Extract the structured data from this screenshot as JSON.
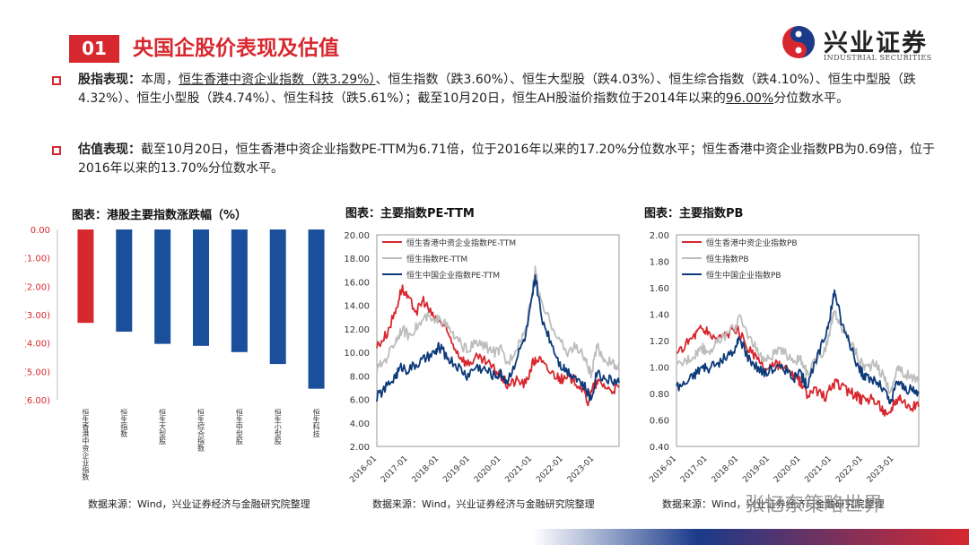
{
  "header": {
    "section_number": "01",
    "title": "央国企股价表现及估值",
    "logo_cn": "兴业证券",
    "logo_en": "INDUSTRIAL SECURITIES"
  },
  "bullets": [
    {
      "label": "股指表现：",
      "segments": [
        {
          "text": "本周，",
          "u": false
        },
        {
          "text": "恒生香港中资企业指数（跌3.29%）",
          "u": true
        },
        {
          "text": "、恒生指数（跌3.60%）、恒生大型股（跌4.03%）、恒生综合指数（跌4.10%）、恒生中型股（跌4.32%）、恒生小型股（跌4.74%）、恒生科技（跌5.61%）；截至10月20日，恒生AH股溢价指数位于2014年以来的",
          "u": false
        },
        {
          "text": "96.00%",
          "u": true
        },
        {
          "text": "分位数水平。",
          "u": false
        }
      ]
    },
    {
      "label": "估值表现：",
      "segments": [
        {
          "text": "截至10月20日，恒生香港中资企业指数PE-TTM为6.71倍，位于2016年以来的17.20%分位数水平；恒生香港中资企业指数PB为0.69倍，位于2016年以来的13.70%分位数水平。",
          "u": false
        }
      ]
    }
  ],
  "charts": {
    "bar": {
      "title": "图表：港股主要指数涨跌幅（%）",
      "source": "数据来源：Wind，兴业证券经济与金融研究院整理"
    },
    "pe": {
      "title": "图表：主要指数PE-TTM",
      "source": "数据来源：Wind，兴业证券经济与金融研究院整理"
    },
    "pb": {
      "title": "图表：主要指数PB",
      "source": "数据来源：Wind，兴业证券经济与金融研究院整理"
    }
  },
  "watermark": "张忆东策略世界",
  "colors": {
    "red": "#d7282f",
    "blue": "#1a4f9c",
    "gray": "#bdbdbd",
    "navy": "#0d3b7a"
  },
  "chart_data": [
    {
      "type": "bar",
      "title": "图表：港股主要指数涨跌幅（%）",
      "categories": [
        "恒生香港中资企业指数",
        "恒生指数",
        "恒生大型股",
        "恒生综合指数",
        "恒生中型股",
        "恒生小型股",
        "恒生科技"
      ],
      "values": [
        -3.29,
        -3.6,
        -4.03,
        -4.1,
        -4.32,
        -4.74,
        -5.61
      ],
      "colors": [
        "#d7282f",
        "#1a4f9c",
        "#1a4f9c",
        "#1a4f9c",
        "#1a4f9c",
        "#1a4f9c",
        "#1a4f9c"
      ],
      "ylim": [
        -6,
        0
      ],
      "yticks": [
        "0.00",
        "(1.00)",
        "(2.00)",
        "(3.00)",
        "(4.00)",
        "(5.00)",
        "(6.00)"
      ]
    },
    {
      "type": "line",
      "title": "图表：主要指数PE-TTM",
      "ylim": [
        2,
        20
      ],
      "yticks": [
        "2.00",
        "4.00",
        "6.00",
        "8.00",
        "10.00",
        "12.00",
        "14.00",
        "16.00",
        "18.00",
        "20.00"
      ],
      "xticks": [
        "2016-01",
        "2017-01",
        "2018-01",
        "2019-01",
        "2020-01",
        "2021-01",
        "2022-01",
        "2023-01"
      ],
      "x_range": [
        2016.0,
        2023.8
      ],
      "series": [
        {
          "name": "恒生香港中资企业指数PE-TTM",
          "color": "#d7282f",
          "points": [
            [
              2016.0,
              10.5
            ],
            [
              2016.3,
              11.5
            ],
            [
              2016.6,
              13.5
            ],
            [
              2016.8,
              15.5
            ],
            [
              2017.0,
              14.5
            ],
            [
              2017.3,
              13.5
            ],
            [
              2017.5,
              14.5
            ],
            [
              2017.8,
              13.0
            ],
            [
              2018.0,
              12.8
            ],
            [
              2018.3,
              11.5
            ],
            [
              2018.6,
              10.0
            ],
            [
              2018.9,
              9.0
            ],
            [
              2019.2,
              9.5
            ],
            [
              2019.5,
              9.2
            ],
            [
              2019.8,
              8.5
            ],
            [
              2020.0,
              8.0
            ],
            [
              2020.2,
              7.2
            ],
            [
              2020.5,
              7.6
            ],
            [
              2020.8,
              7.3
            ],
            [
              2021.0,
              9.0
            ],
            [
              2021.2,
              9.5
            ],
            [
              2021.5,
              8.5
            ],
            [
              2021.8,
              8.0
            ],
            [
              2022.0,
              7.6
            ],
            [
              2022.3,
              7.8
            ],
            [
              2022.6,
              7.0
            ],
            [
              2022.8,
              5.8
            ],
            [
              2023.0,
              7.2
            ],
            [
              2023.2,
              7.5
            ],
            [
              2023.5,
              6.8
            ],
            [
              2023.8,
              7.0
            ]
          ]
        },
        {
          "name": "恒生指数PE-TTM",
          "color": "#bdbdbd",
          "points": [
            [
              2016.0,
              8.5
            ],
            [
              2016.3,
              9.5
            ],
            [
              2016.6,
              11.0
            ],
            [
              2016.8,
              12.0
            ],
            [
              2017.0,
              11.5
            ],
            [
              2017.3,
              12.2
            ],
            [
              2017.6,
              13.0
            ],
            [
              2017.9,
              12.5
            ],
            [
              2018.0,
              13.2
            ],
            [
              2018.3,
              12.0
            ],
            [
              2018.6,
              11.0
            ],
            [
              2018.9,
              10.2
            ],
            [
              2019.2,
              10.8
            ],
            [
              2019.5,
              10.5
            ],
            [
              2019.8,
              10.0
            ],
            [
              2020.0,
              10.2
            ],
            [
              2020.2,
              9.0
            ],
            [
              2020.5,
              10.5
            ],
            [
              2020.8,
              12.0
            ],
            [
              2021.0,
              15.0
            ],
            [
              2021.1,
              17.0
            ],
            [
              2021.3,
              14.0
            ],
            [
              2021.6,
              12.5
            ],
            [
              2021.9,
              11.0
            ],
            [
              2022.1,
              10.0
            ],
            [
              2022.4,
              10.5
            ],
            [
              2022.7,
              9.5
            ],
            [
              2022.9,
              8.0
            ],
            [
              2023.1,
              10.5
            ],
            [
              2023.3,
              9.5
            ],
            [
              2023.6,
              9.0
            ],
            [
              2023.8,
              8.5
            ]
          ]
        },
        {
          "name": "恒生中国企业指数PE-TTM",
          "color": "#0d3b7a",
          "points": [
            [
              2016.0,
              6.2
            ],
            [
              2016.3,
              7.0
            ],
            [
              2016.6,
              8.0
            ],
            [
              2016.8,
              8.8
            ],
            [
              2017.0,
              8.5
            ],
            [
              2017.3,
              9.0
            ],
            [
              2017.6,
              9.5
            ],
            [
              2017.9,
              10.0
            ],
            [
              2018.0,
              10.5
            ],
            [
              2018.3,
              9.5
            ],
            [
              2018.6,
              8.8
            ],
            [
              2018.9,
              8.0
            ],
            [
              2019.2,
              8.8
            ],
            [
              2019.5,
              8.5
            ],
            [
              2019.8,
              8.0
            ],
            [
              2020.0,
              8.2
            ],
            [
              2020.2,
              7.5
            ],
            [
              2020.5,
              9.5
            ],
            [
              2020.8,
              11.5
            ],
            [
              2021.0,
              14.5
            ],
            [
              2021.1,
              16.5
            ],
            [
              2021.3,
              13.0
            ],
            [
              2021.6,
              11.0
            ],
            [
              2021.9,
              9.0
            ],
            [
              2022.1,
              8.5
            ],
            [
              2022.4,
              8.0
            ],
            [
              2022.7,
              7.0
            ],
            [
              2022.9,
              6.0
            ],
            [
              2023.1,
              8.5
            ],
            [
              2023.3,
              7.8
            ],
            [
              2023.6,
              7.6
            ],
            [
              2023.8,
              7.4
            ]
          ]
        }
      ]
    },
    {
      "type": "line",
      "title": "图表：主要指数PB",
      "ylim": [
        0.4,
        2.0
      ],
      "yticks": [
        "0.40",
        "0.60",
        "0.80",
        "1.00",
        "1.20",
        "1.40",
        "1.60",
        "1.80",
        "2.00"
      ],
      "xticks": [
        "2016-01",
        "2017-01",
        "2018-01",
        "2019-01",
        "2020-01",
        "2021-01",
        "2022-01",
        "2023-01"
      ],
      "x_range": [
        2016.0,
        2023.8
      ],
      "series": [
        {
          "name": "恒生香港中资企业指数PB",
          "color": "#d7282f",
          "points": [
            [
              2016.0,
              1.08
            ],
            [
              2016.3,
              1.18
            ],
            [
              2016.6,
              1.25
            ],
            [
              2016.8,
              1.3
            ],
            [
              2017.0,
              1.26
            ],
            [
              2017.3,
              1.22
            ],
            [
              2017.6,
              1.25
            ],
            [
              2017.9,
              1.28
            ],
            [
              2018.0,
              1.27
            ],
            [
              2018.3,
              1.15
            ],
            [
              2018.6,
              1.05
            ],
            [
              2018.9,
              0.98
            ],
            [
              2019.2,
              1.02
            ],
            [
              2019.5,
              0.98
            ],
            [
              2019.8,
              0.92
            ],
            [
              2020.0,
              0.88
            ],
            [
              2020.2,
              0.78
            ],
            [
              2020.5,
              0.82
            ],
            [
              2020.8,
              0.78
            ],
            [
              2021.0,
              0.86
            ],
            [
              2021.2,
              0.88
            ],
            [
              2021.5,
              0.82
            ],
            [
              2021.8,
              0.78
            ],
            [
              2022.0,
              0.75
            ],
            [
              2022.3,
              0.76
            ],
            [
              2022.6,
              0.7
            ],
            [
              2022.8,
              0.62
            ],
            [
              2023.0,
              0.74
            ],
            [
              2023.2,
              0.78
            ],
            [
              2023.5,
              0.7
            ],
            [
              2023.8,
              0.7
            ]
          ]
        },
        {
          "name": "恒生指数PB",
          "color": "#bdbdbd",
          "points": [
            [
              2016.0,
              1.0
            ],
            [
              2016.3,
              1.05
            ],
            [
              2016.6,
              1.1
            ],
            [
              2016.8,
              1.15
            ],
            [
              2017.0,
              1.12
            ],
            [
              2017.3,
              1.18
            ],
            [
              2017.6,
              1.25
            ],
            [
              2017.9,
              1.3
            ],
            [
              2018.0,
              1.38
            ],
            [
              2018.3,
              1.25
            ],
            [
              2018.6,
              1.12
            ],
            [
              2018.9,
              1.05
            ],
            [
              2019.2,
              1.12
            ],
            [
              2019.5,
              1.1
            ],
            [
              2019.8,
              1.05
            ],
            [
              2020.0,
              1.05
            ],
            [
              2020.2,
              0.95
            ],
            [
              2020.5,
              1.05
            ],
            [
              2020.8,
              1.15
            ],
            [
              2021.0,
              1.35
            ],
            [
              2021.1,
              1.42
            ],
            [
              2021.3,
              1.3
            ],
            [
              2021.6,
              1.2
            ],
            [
              2021.9,
              1.05
            ],
            [
              2022.1,
              1.0
            ],
            [
              2022.4,
              1.02
            ],
            [
              2022.7,
              0.92
            ],
            [
              2022.9,
              0.8
            ],
            [
              2023.1,
              1.0
            ],
            [
              2023.3,
              0.95
            ],
            [
              2023.6,
              0.92
            ],
            [
              2023.8,
              0.88
            ]
          ]
        },
        {
          "name": "恒生中国企业指数PB",
          "color": "#0d3b7a",
          "points": [
            [
              2016.0,
              0.85
            ],
            [
              2016.3,
              0.88
            ],
            [
              2016.6,
              0.95
            ],
            [
              2016.8,
              1.0
            ],
            [
              2017.0,
              0.98
            ],
            [
              2017.3,
              1.02
            ],
            [
              2017.6,
              1.08
            ],
            [
              2017.9,
              1.12
            ],
            [
              2018.0,
              1.22
            ],
            [
              2018.3,
              1.08
            ],
            [
              2018.6,
              1.0
            ],
            [
              2018.9,
              0.95
            ],
            [
              2019.2,
              1.0
            ],
            [
              2019.5,
              0.98
            ],
            [
              2019.8,
              0.92
            ],
            [
              2020.0,
              0.95
            ],
            [
              2020.2,
              0.85
            ],
            [
              2020.5,
              1.05
            ],
            [
              2020.8,
              1.25
            ],
            [
              2021.0,
              1.45
            ],
            [
              2021.1,
              1.58
            ],
            [
              2021.3,
              1.35
            ],
            [
              2021.6,
              1.15
            ],
            [
              2021.9,
              0.98
            ],
            [
              2022.1,
              0.92
            ],
            [
              2022.4,
              0.9
            ],
            [
              2022.7,
              0.82
            ],
            [
              2022.9,
              0.72
            ],
            [
              2023.1,
              0.9
            ],
            [
              2023.3,
              0.85
            ],
            [
              2023.6,
              0.82
            ],
            [
              2023.8,
              0.8
            ]
          ]
        }
      ]
    }
  ]
}
